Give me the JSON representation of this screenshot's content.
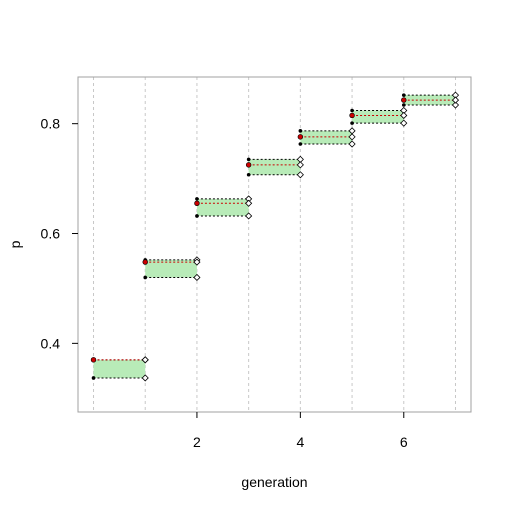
{
  "chart_data": {
    "type": "step-band",
    "xlabel": "generation",
    "ylabel": "p",
    "xlim": [
      -0.3,
      7.3
    ],
    "ylim": [
      0.275,
      0.885
    ],
    "x_ticks": [
      2,
      4,
      6
    ],
    "y_ticks": [
      0.4,
      0.6,
      0.8
    ],
    "x_tick_labels": [
      "2",
      "4",
      "6"
    ],
    "y_tick_labels": [
      "0.4",
      "0.6",
      "0.8"
    ],
    "vertical_gridlines_at": [
      0,
      1,
      2,
      3,
      4,
      5,
      6,
      7
    ],
    "steps": [
      {
        "generation": 0,
        "lower": 0.337,
        "upper": 0.37,
        "point": 0.37
      },
      {
        "generation": 1,
        "lower": 0.52,
        "upper": 0.552,
        "point": 0.548
      },
      {
        "generation": 2,
        "lower": 0.632,
        "upper": 0.663,
        "point": 0.655
      },
      {
        "generation": 3,
        "lower": 0.707,
        "upper": 0.735,
        "point": 0.725
      },
      {
        "generation": 4,
        "lower": 0.763,
        "upper": 0.787,
        "point": 0.776
      },
      {
        "generation": 5,
        "lower": 0.801,
        "upper": 0.824,
        "point": 0.815
      },
      {
        "generation": 6,
        "lower": 0.834,
        "upper": 0.852,
        "point": 0.843
      }
    ],
    "colors": {
      "band_fill": "#b8ebb8",
      "band_line": "#000000",
      "point": "#cc0000",
      "gridline": "#c8c8c8",
      "frame": "#a0a0a0"
    }
  }
}
